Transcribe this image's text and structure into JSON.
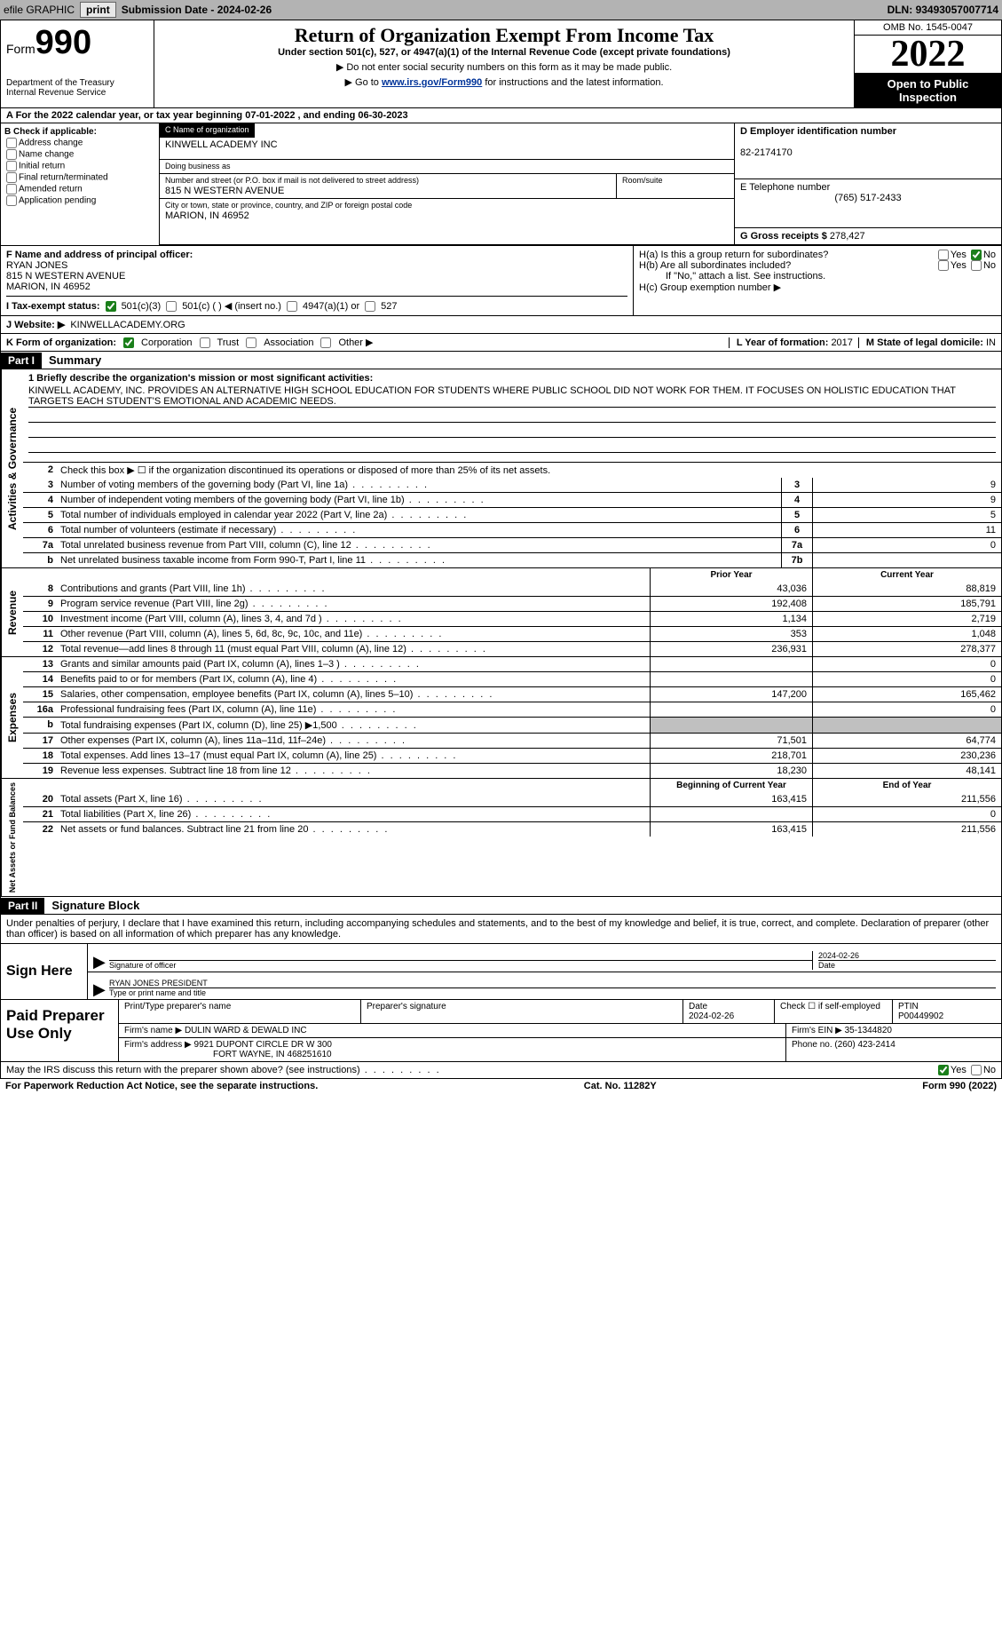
{
  "topbar": {
    "efile": "efile GRAPHIC",
    "print": "print",
    "subdate_label": "Submission Date - ",
    "subdate": "2024-02-26",
    "dln_label": "DLN: ",
    "dln": "93493057007714"
  },
  "header": {
    "form_label": "Form",
    "form_num": "990",
    "dept": "Department of the Treasury",
    "irs": "Internal Revenue Service",
    "title": "Return of Organization Exempt From Income Tax",
    "subtitle": "Under section 501(c), 527, or 4947(a)(1) of the Internal Revenue Code (except private foundations)",
    "notice1": "▶ Do not enter social security numbers on this form as it may be made public.",
    "notice2_pre": "▶ Go to ",
    "notice2_link": "www.irs.gov/Form990",
    "notice2_post": " for instructions and the latest information.",
    "omb": "OMB No. 1545-0047",
    "year": "2022",
    "open": "Open to Public Inspection"
  },
  "lineA": {
    "text": "A For the 2022 calendar year, or tax year beginning ",
    "begin": "07-01-2022",
    "mid": "   , and ending ",
    "end": "06-30-2023"
  },
  "colB": {
    "heading": "B Check if applicable:",
    "opts": [
      "Address change",
      "Name change",
      "Initial return",
      "Final return/terminated",
      "Amended return",
      "Application pending"
    ]
  },
  "colC": {
    "name_lbl": "C Name of organization",
    "name": "KINWELL ACADEMY INC",
    "dba_lbl": "Doing business as",
    "dba": "",
    "addr_lbl": "Number and street (or P.O. box if mail is not delivered to street address)",
    "room_lbl": "Room/suite",
    "addr": "815 N WESTERN AVENUE",
    "city_lbl": "City or town, state or province, country, and ZIP or foreign postal code",
    "city": "MARION, IN  46952"
  },
  "colD": {
    "ein_lbl": "D Employer identification number",
    "ein": "82-2174170",
    "tel_lbl": "E Telephone number",
    "tel": "(765) 517-2433",
    "gross_lbl": "G Gross receipts $ ",
    "gross": "278,427"
  },
  "colF": {
    "lbl": "F Name and address of principal officer:",
    "name": "RYAN JONES",
    "addr1": "815 N WESTERN AVENUE",
    "addr2": "MARION, IN  46952"
  },
  "colH": {
    "ha_lbl": "H(a)  Is this a group return for subordinates?",
    "hb_lbl": "H(b)  Are all subordinates included?",
    "hb_note": "If \"No,\" attach a list. See instructions.",
    "hc_lbl": "H(c)  Group exemption number ▶",
    "yes": "Yes",
    "no": "No"
  },
  "lineI": {
    "lbl": "I   Tax-exempt status:",
    "opt1": "501(c)(3)",
    "opt2": "501(c) (  ) ◀ (insert no.)",
    "opt3": "4947(a)(1) or",
    "opt4": "527"
  },
  "lineJ": {
    "lbl": "J   Website: ▶",
    "val": " KINWELLACADEMY.ORG"
  },
  "lineK": {
    "lbl": "K Form of organization:",
    "o1": "Corporation",
    "o2": "Trust",
    "o3": "Association",
    "o4": "Other ▶",
    "L_lbl": "L Year of formation: ",
    "L_val": "2017",
    "M_lbl": "M State of legal domicile: ",
    "M_val": "IN"
  },
  "part1": {
    "hdr": "Part I",
    "title": "Summary",
    "line1_lbl": "1   Briefly describe the organization's mission or most significant activities:",
    "mission": "KINWELL ACADEMY, INC. PROVIDES AN ALTERNATIVE HIGH SCHOOL EDUCATION FOR STUDENTS WHERE PUBLIC SCHOOL DID NOT WORK FOR THEM. IT FOCUSES ON HOLISTIC EDUCATION THAT TARGETS EACH STUDENT'S EMOTIONAL AND ACADEMIC NEEDS.",
    "line2": "Check this box ▶ ☐ if the organization discontinued its operations or disposed of more than 25% of its net assets.",
    "vert_ag": "Activities & Governance",
    "vert_rev": "Revenue",
    "vert_exp": "Expenses",
    "vert_net": "Net Assets or Fund Balances",
    "rows_ag": [
      {
        "n": "3",
        "t": "Number of voting members of the governing body (Part VI, line 1a)",
        "b": "3",
        "v": "9"
      },
      {
        "n": "4",
        "t": "Number of independent voting members of the governing body (Part VI, line 1b)",
        "b": "4",
        "v": "9"
      },
      {
        "n": "5",
        "t": "Total number of individuals employed in calendar year 2022 (Part V, line 2a)",
        "b": "5",
        "v": "5"
      },
      {
        "n": "6",
        "t": "Total number of volunteers (estimate if necessary)",
        "b": "6",
        "v": "11"
      },
      {
        "n": "7a",
        "t": "Total unrelated business revenue from Part VIII, column (C), line 12",
        "b": "7a",
        "v": "0"
      },
      {
        "n": "b",
        "t": "Net unrelated business taxable income from Form 990-T, Part I, line 11",
        "b": "7b",
        "v": ""
      }
    ],
    "col_prior": "Prior Year",
    "col_current": "Current Year",
    "rows_rev": [
      {
        "n": "8",
        "t": "Contributions and grants (Part VIII, line 1h)",
        "p": "43,036",
        "c": "88,819"
      },
      {
        "n": "9",
        "t": "Program service revenue (Part VIII, line 2g)",
        "p": "192,408",
        "c": "185,791"
      },
      {
        "n": "10",
        "t": "Investment income (Part VIII, column (A), lines 3, 4, and 7d )",
        "p": "1,134",
        "c": "2,719"
      },
      {
        "n": "11",
        "t": "Other revenue (Part VIII, column (A), lines 5, 6d, 8c, 9c, 10c, and 11e)",
        "p": "353",
        "c": "1,048"
      },
      {
        "n": "12",
        "t": "Total revenue—add lines 8 through 11 (must equal Part VIII, column (A), line 12)",
        "p": "236,931",
        "c": "278,377"
      }
    ],
    "rows_exp": [
      {
        "n": "13",
        "t": "Grants and similar amounts paid (Part IX, column (A), lines 1–3 )",
        "p": "",
        "c": "0"
      },
      {
        "n": "14",
        "t": "Benefits paid to or for members (Part IX, column (A), line 4)",
        "p": "",
        "c": "0"
      },
      {
        "n": "15",
        "t": "Salaries, other compensation, employee benefits (Part IX, column (A), lines 5–10)",
        "p": "147,200",
        "c": "165,462"
      },
      {
        "n": "16a",
        "t": "Professional fundraising fees (Part IX, column (A), line 11e)",
        "p": "",
        "c": "0"
      },
      {
        "n": "b",
        "t": "Total fundraising expenses (Part IX, column (D), line 25) ▶1,500",
        "p": "GRAY",
        "c": "GRAY"
      },
      {
        "n": "17",
        "t": "Other expenses (Part IX, column (A), lines 11a–11d, 11f–24e)",
        "p": "71,501",
        "c": "64,774"
      },
      {
        "n": "18",
        "t": "Total expenses. Add lines 13–17 (must equal Part IX, column (A), line 25)",
        "p": "218,701",
        "c": "230,236"
      },
      {
        "n": "19",
        "t": "Revenue less expenses. Subtract line 18 from line 12",
        "p": "18,230",
        "c": "48,141"
      }
    ],
    "col_begin": "Beginning of Current Year",
    "col_end": "End of Year",
    "rows_net": [
      {
        "n": "20",
        "t": "Total assets (Part X, line 16)",
        "p": "163,415",
        "c": "211,556"
      },
      {
        "n": "21",
        "t": "Total liabilities (Part X, line 26)",
        "p": "",
        "c": "0"
      },
      {
        "n": "22",
        "t": "Net assets or fund balances. Subtract line 21 from line 20",
        "p": "163,415",
        "c": "211,556"
      }
    ]
  },
  "part2": {
    "hdr": "Part II",
    "title": "Signature Block",
    "decl": "Under penalties of perjury, I declare that I have examined this return, including accompanying schedules and statements, and to the best of my knowledge and belief, it is true, correct, and complete. Declaration of preparer (other than officer) is based on all information of which preparer has any knowledge.",
    "sign_here": "Sign Here",
    "sig_officer_lbl": "Signature of officer",
    "sig_date": "2024-02-26",
    "date_lbl": "Date",
    "officer_name": "RYAN JONES PRESIDENT",
    "officer_name_lbl": "Type or print name and title",
    "paid": "Paid Preparer Use Only",
    "prep_name_lbl": "Print/Type preparer's name",
    "prep_sig_lbl": "Preparer's signature",
    "prep_date_lbl": "Date",
    "prep_date": "2024-02-26",
    "prep_self_lbl": "Check ☐ if self-employed",
    "ptin_lbl": "PTIN",
    "ptin": "P00449902",
    "firm_name_lbl": "Firm's name    ▶ ",
    "firm_name": "DULIN WARD & DEWALD INC",
    "firm_ein_lbl": "Firm's EIN ▶ ",
    "firm_ein": "35-1344820",
    "firm_addr_lbl": "Firm's address ▶ ",
    "firm_addr1": "9921 DUPONT CIRCLE DR W 300",
    "firm_addr2": "FORT WAYNE, IN  468251610",
    "firm_phone_lbl": "Phone no. ",
    "firm_phone": "(260) 423-2414",
    "discuss": "May the IRS discuss this return with the preparer shown above? (see instructions)",
    "yes": "Yes",
    "no": "No"
  },
  "footer": {
    "left": "For Paperwork Reduction Act Notice, see the separate instructions.",
    "mid": "Cat. No. 11282Y",
    "right": "Form 990 (2022)"
  }
}
